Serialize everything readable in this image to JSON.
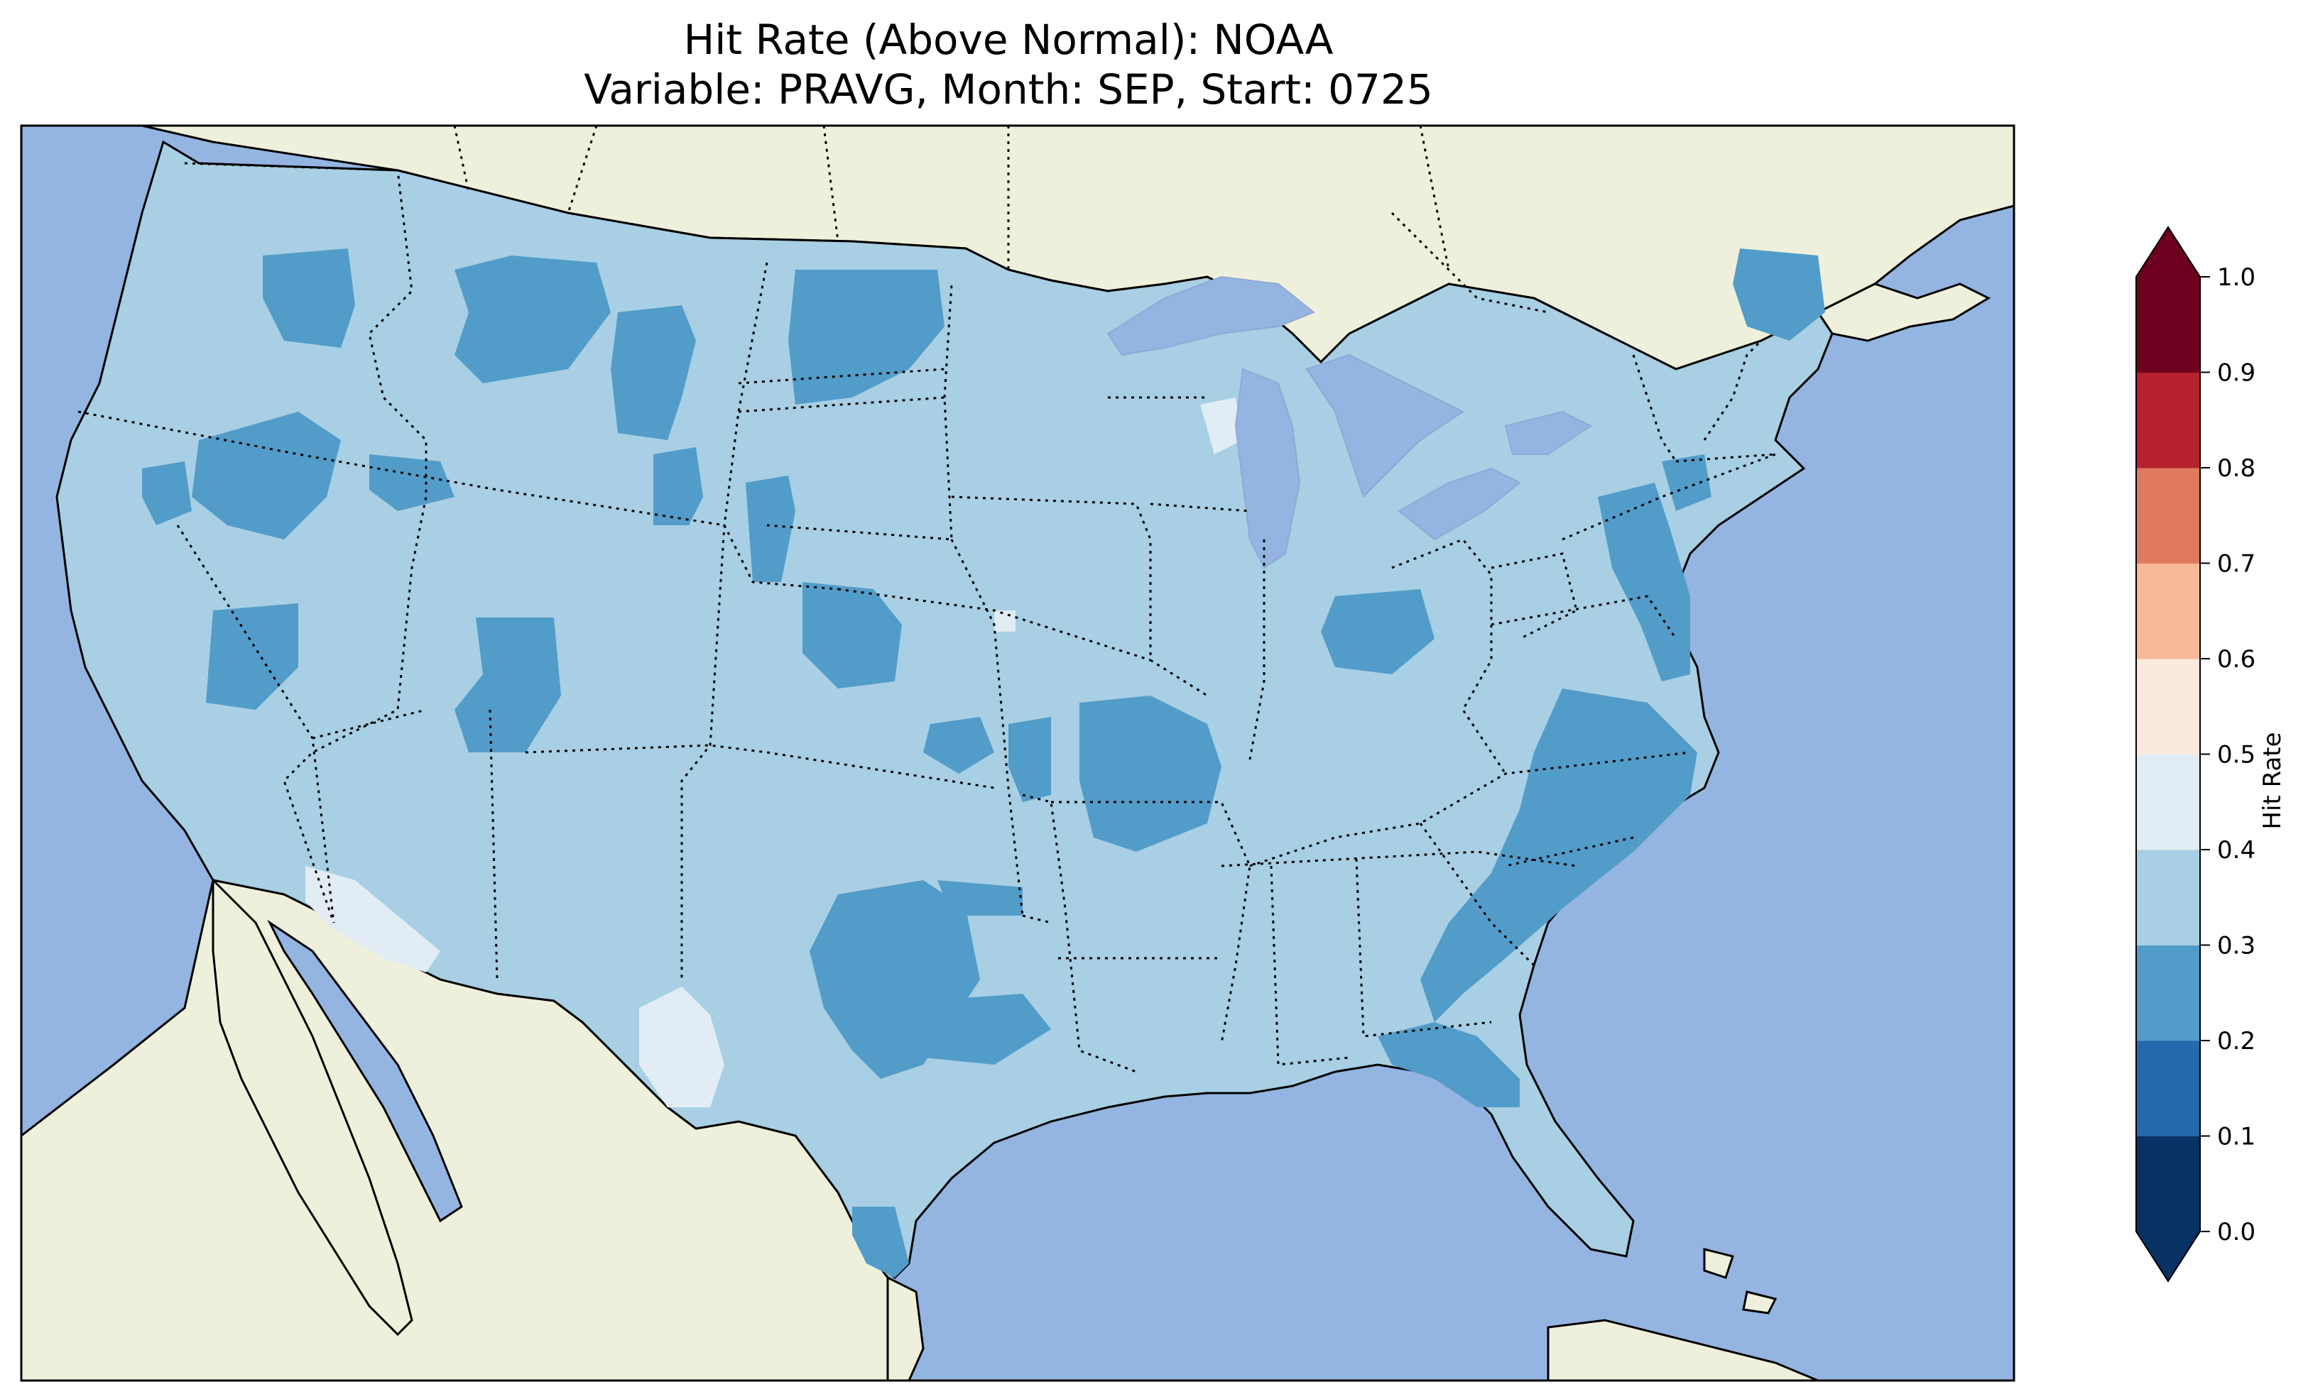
{
  "title": {
    "line1": "Hit Rate (Above Normal): NOAA",
    "line2": "Variable: PRAVG, Month: SEP, Start: 0725"
  },
  "colors": {
    "ocean": "#94b4e1",
    "land_other": "#eff0dc",
    "lakes": "#94b4e1",
    "coast": "#000000"
  },
  "colorbar": {
    "label": "Hit Rate",
    "levels": [
      0.0,
      0.1,
      0.2,
      0.3,
      0.4,
      0.5,
      0.6,
      0.7,
      0.8,
      0.9,
      1.0
    ],
    "tick_labels": [
      "0.0",
      "0.1",
      "0.2",
      "0.3",
      "0.4",
      "0.5",
      "0.6",
      "0.7",
      "0.8",
      "0.9",
      "1.0"
    ],
    "colors": [
      "#053061",
      "#2166ac",
      "#4393c3",
      "#92c5de",
      "#d1e5f0",
      "#f7f7f7",
      "#fddbc7",
      "#f4a582",
      "#d6604d",
      "#b2182b",
      "#67001f"
    ],
    "bin_colors": [
      "#083164",
      "#2469ac",
      "#529cc9",
      "#a8cfe3",
      "#e1ecf4",
      "#fae9df",
      "#f7b998",
      "#e07a5f",
      "#b6222e",
      "#6c001e"
    ],
    "extend": "both"
  },
  "map_regions": {
    "dominant_bin": "0.3-0.4",
    "secondary_bin": "0.2-0.3",
    "minor_bin": "0.4-0.5"
  }
}
